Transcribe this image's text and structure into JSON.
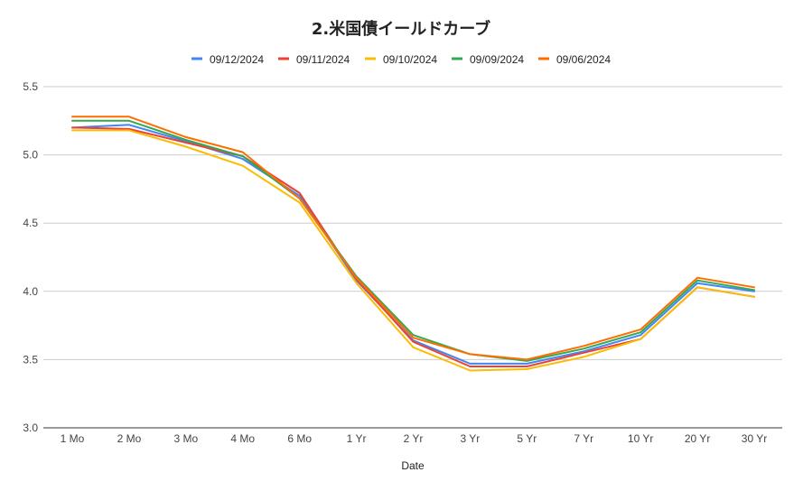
{
  "chart_data": {
    "type": "line",
    "title": "2.米国債イールドカーブ",
    "xlabel": "Date",
    "ylabel": "",
    "categories": [
      "1 Mo",
      "2 Mo",
      "3 Mo",
      "4 Mo",
      "6 Mo",
      "1 Yr",
      "2 Yr",
      "3 Yr",
      "5 Yr",
      "7 Yr",
      "10 Yr",
      "20 Yr",
      "30 Yr"
    ],
    "ylim": [
      3.0,
      5.5
    ],
    "yticks": [
      "3.0",
      "3.5",
      "4.0",
      "4.5",
      "5.0",
      "5.5"
    ],
    "grid": true,
    "legend_position": "top",
    "series": [
      {
        "name": "09/12/2024",
        "color": "#4285f4",
        "values": [
          5.2,
          5.22,
          5.1,
          4.97,
          4.7,
          4.08,
          3.64,
          3.47,
          3.47,
          3.56,
          3.68,
          4.06,
          4.0
        ]
      },
      {
        "name": "09/11/2024",
        "color": "#ea4335",
        "values": [
          5.2,
          5.19,
          5.09,
          4.99,
          4.72,
          4.09,
          3.63,
          3.45,
          3.45,
          3.55,
          3.65,
          4.03,
          3.96
        ]
      },
      {
        "name": "09/10/2024",
        "color": "#fbbc04",
        "values": [
          5.18,
          5.18,
          5.06,
          4.92,
          4.65,
          4.06,
          3.59,
          3.42,
          3.43,
          3.52,
          3.65,
          4.03,
          3.96
        ]
      },
      {
        "name": "09/09/2024",
        "color": "#34a853",
        "values": [
          5.25,
          5.25,
          5.11,
          4.99,
          4.68,
          4.11,
          3.68,
          3.54,
          3.49,
          3.58,
          3.7,
          4.08,
          4.01
        ]
      },
      {
        "name": "09/06/2024",
        "color": "#ff6d01",
        "values": [
          5.28,
          5.28,
          5.13,
          5.02,
          4.68,
          4.1,
          3.66,
          3.54,
          3.5,
          3.6,
          3.72,
          4.1,
          4.03
        ]
      }
    ]
  }
}
